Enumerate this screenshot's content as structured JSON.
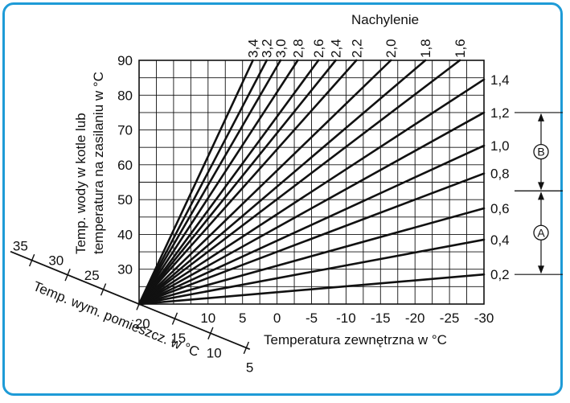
{
  "chart_data": {
    "type": "line",
    "title": "",
    "legend_title": "Nachylenie",
    "xlabel": "Temperatura zewnętrzna w °C",
    "ylabel_line1": "Temp. wody w kotle lub",
    "ylabel_line2": "temperatura na zasilaniu w °C",
    "room_axis_label": "Temp. wym. pomieszcz. w °C",
    "x_ticks": [
      10,
      5,
      0,
      -5,
      -10,
      -15,
      -20,
      -25,
      -30
    ],
    "x_tick_labels": [
      "10",
      "5",
      "0",
      "-5",
      "-10",
      "-15",
      "-20",
      "-25",
      "-30"
    ],
    "xlim": [
      20,
      -30
    ],
    "y_ticks": [
      30,
      40,
      50,
      60,
      70,
      80,
      90
    ],
    "y_tick_labels": [
      "30",
      "40",
      "50",
      "60",
      "70",
      "80",
      "90"
    ],
    "ylim": [
      20,
      90
    ],
    "room_ticks": [
      35,
      30,
      25,
      20,
      15,
      10,
      5
    ],
    "room_tick_labels": [
      "35",
      "30",
      "25",
      "20",
      "15",
      "10",
      "5"
    ],
    "grid": true,
    "origin": {
      "outside_temp": 20,
      "water_temp": 20
    },
    "series": [
      {
        "name": "0,2",
        "slope": 0.2,
        "label_pos": "right",
        "end": {
          "x": -30,
          "y": 28.5
        }
      },
      {
        "name": "0,4",
        "slope": 0.4,
        "label_pos": "right",
        "end": {
          "x": -30,
          "y": 38.5
        }
      },
      {
        "name": "0,6",
        "slope": 0.6,
        "label_pos": "right",
        "end": {
          "x": -30,
          "y": 47.5
        }
      },
      {
        "name": "0,8",
        "slope": 0.8,
        "label_pos": "right",
        "end": {
          "x": -30,
          "y": 57.5
        }
      },
      {
        "name": "1,0",
        "slope": 1.0,
        "label_pos": "right",
        "end": {
          "x": -30,
          "y": 65.5
        }
      },
      {
        "name": "1,2",
        "slope": 1.2,
        "label_pos": "right",
        "end": {
          "x": -30,
          "y": 75
        }
      },
      {
        "name": "1,4",
        "slope": 1.4,
        "label_pos": "right",
        "end": {
          "x": -30,
          "y": 84.5
        }
      },
      {
        "name": "1,6",
        "slope": 1.6,
        "label_pos": "top",
        "end": {
          "x": -26.5,
          "y": 90
        }
      },
      {
        "name": "1,8",
        "slope": 1.8,
        "label_pos": "top",
        "end": {
          "x": -21.5,
          "y": 90
        }
      },
      {
        "name": "2,0",
        "slope": 2.0,
        "label_pos": "top",
        "end": {
          "x": -16.5,
          "y": 90
        }
      },
      {
        "name": "2,2",
        "slope": 2.2,
        "label_pos": "top",
        "end": {
          "x": -11.5,
          "y": 90
        }
      },
      {
        "name": "2,4",
        "slope": 2.4,
        "label_pos": "top",
        "end": {
          "x": -8.5,
          "y": 90
        }
      },
      {
        "name": "2,6",
        "slope": 2.6,
        "label_pos": "top",
        "end": {
          "x": -6,
          "y": 90
        }
      },
      {
        "name": "2,8",
        "slope": 2.8,
        "label_pos": "top",
        "end": {
          "x": -3,
          "y": 90
        }
      },
      {
        "name": "3,0",
        "slope": 3.0,
        "label_pos": "top",
        "end": {
          "x": -0.5,
          "y": 90
        }
      },
      {
        "name": "3,2",
        "slope": 3.2,
        "label_pos": "top",
        "end": {
          "x": 1.5,
          "y": 90
        }
      },
      {
        "name": "3,4",
        "slope": 3.4,
        "label_pos": "top",
        "end": {
          "x": 3.5,
          "y": 90
        }
      }
    ],
    "ranges": [
      {
        "label": "B",
        "from_slope": 1.2,
        "to_slope": 0.7
      },
      {
        "label": "A",
        "from_slope": 0.7,
        "to_slope": 0.2
      }
    ]
  }
}
